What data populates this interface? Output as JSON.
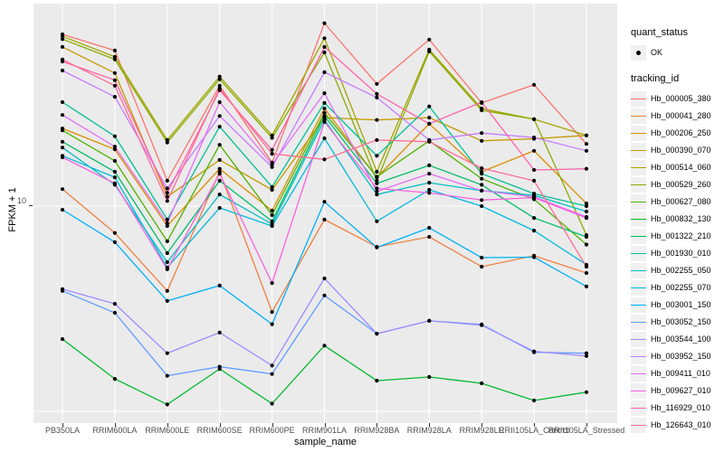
{
  "panel": {
    "background": "#EBEBEB",
    "gridline_color": "#FFFFFF"
  },
  "axes": {
    "y_title": "FPKM + 1",
    "x_title": "sample_name",
    "y_tick_labels": [
      "10"
    ]
  },
  "legend": {
    "quant_status_title": "quant_status",
    "quant_status_items": [
      "OK"
    ],
    "tracking_title": "tracking_id"
  },
  "chart_data": {
    "type": "line",
    "title": "",
    "xlabel": "sample_name",
    "ylabel": "FPKM + 1",
    "y_scale": "log10",
    "ylim": [
      0.9,
      92
    ],
    "y_ticks": [
      10
    ],
    "y_gridlines": [
      1,
      10
    ],
    "grid": true,
    "legend_position": "right",
    "point_marker": {
      "shape": "filled-circle",
      "color": "#000000",
      "label": "OK"
    },
    "categories": [
      "PB350LA",
      "RRIM600LA",
      "RRIM600LE",
      "RRIM600SE",
      "RRIM600PE",
      "RRIM901LA",
      "RRIM928BA",
      "RRIM928LA",
      "RRIM928LE",
      "RRII105LA_Control",
      "RRII105LA_Stressed"
    ],
    "series": [
      {
        "name": "Hb_000005_380",
        "color": "#F8766D",
        "values": [
          68.7,
          57.3,
          13.3,
          38.6,
          16.3,
          77.8,
          39.4,
          64.8,
          31.8,
          39.0,
          20.1
        ]
      },
      {
        "name": "Hb_000041_280",
        "color": "#EE8042",
        "values": [
          12.1,
          7.4,
          3.86,
          14.7,
          3.05,
          8.6,
          6.33,
          7.08,
          5.07,
          5.73,
          4.72
        ]
      },
      {
        "name": "Hb_000206_250",
        "color": "#DB8E00",
        "values": [
          23.9,
          18.9,
          8.0,
          15.2,
          9.51,
          29.9,
          13.8,
          25.2,
          14.7,
          18.6,
          10.3
        ]
      },
      {
        "name": "Hb_000390_070",
        "color": "#C49A00",
        "values": [
          59.7,
          44.5,
          11.1,
          16.8,
          12.0,
          27.0,
          26.3,
          27.0,
          20.8,
          21.3,
          22.1
        ]
      },
      {
        "name": "Hb_000514_060",
        "color": "#A3A500",
        "values": [
          67.2,
          53.4,
          21.0,
          42.8,
          22.1,
          65.8,
          14.7,
          57.9,
          29.9,
          26.5,
          22.1
        ]
      },
      {
        "name": "Hb_000529_260",
        "color": "#89AC00",
        "values": [
          65.1,
          51.9,
          20.4,
          41.5,
          21.5,
          56.1,
          13.3,
          56.7,
          29.3,
          26.5,
          7.23
        ]
      },
      {
        "name": "Hb_000627_080",
        "color": "#4FB300",
        "values": [
          23.4,
          16.6,
          6.74,
          19.9,
          9.04,
          28.5,
          13.9,
          20.8,
          13.6,
          10.8,
          6.5
        ]
      },
      {
        "name": "Hb_000832_130",
        "color": "#00B92E",
        "values": [
          2.25,
          1.44,
          1.08,
          1.61,
          1.09,
          2.09,
          1.41,
          1.47,
          1.37,
          1.13,
          1.24
        ]
      },
      {
        "name": "Hb_001322_210",
        "color": "#00BD68",
        "values": [
          20.6,
          14.7,
          5.9,
          13.3,
          8.43,
          27.5,
          12.9,
          15.8,
          12.7,
          8.76,
          7.08
        ]
      },
      {
        "name": "Hb_001930_010",
        "color": "#00C094",
        "values": [
          32.1,
          21.9,
          8.6,
          24.4,
          12.4,
          31.8,
          17.6,
          30.6,
          14.4,
          11.5,
          10.0
        ]
      },
      {
        "name": "Hb_002255_050",
        "color": "#00BFC2",
        "values": [
          19.3,
          12.7,
          5.33,
          11.4,
          8.17,
          26.3,
          11.4,
          13.0,
          11.9,
          11.3,
          9.41
        ]
      },
      {
        "name": "Hb_002255_070",
        "color": "#00BADE",
        "values": [
          17.6,
          13.8,
          5.02,
          9.8,
          8.0,
          21.4,
          8.43,
          12.0,
          10.0,
          7.6,
          5.18
        ]
      },
      {
        "name": "Hb_003001_150",
        "color": "#00B0F6",
        "values": [
          9.6,
          6.67,
          3.45,
          4.1,
          2.66,
          10.5,
          6.29,
          7.84,
          5.61,
          5.64,
          4.06
        ]
      },
      {
        "name": "Hb_003052_150",
        "color": "#619CFF",
        "values": [
          3.86,
          3.02,
          1.49,
          1.65,
          1.52,
          3.67,
          2.39,
          2.76,
          2.65,
          1.94,
          1.92
        ]
      },
      {
        "name": "Hb_003544_100",
        "color": "#9F8CFF",
        "values": [
          3.94,
          3.34,
          1.92,
          2.42,
          1.67,
          4.44,
          2.39,
          2.76,
          2.63,
          1.96,
          1.86
        ]
      },
      {
        "name": "Hb_003952_150",
        "color": "#C77CFF",
        "values": [
          45.8,
          34.1,
          12.2,
          27.5,
          15.5,
          44.9,
          33.8,
          21.0,
          22.7,
          21.6,
          18.6
        ]
      },
      {
        "name": "Hb_009411_010",
        "color": "#E36EF6",
        "values": [
          27.8,
          19.5,
          8.25,
          32.1,
          16.0,
          35.5,
          11.8,
          14.4,
          11.9,
          11.1,
          8.85
        ]
      },
      {
        "name": "Hb_009627_010",
        "color": "#F962DD",
        "values": [
          17.3,
          12.9,
          4.92,
          14.4,
          4.22,
          25.7,
          12.2,
          11.6,
          10.7,
          11.0,
          8.76
        ]
      },
      {
        "name": "Hb_116929_010",
        "color": "#FF62A9",
        "values": [
          50.7,
          41.1,
          11.6,
          36.7,
          18.8,
          59.7,
          35.2,
          25.2,
          32.1,
          15.0,
          15.2
        ]
      },
      {
        "name": "Hb_126643_010",
        "color": "#FF6C92",
        "values": [
          51.8,
          38.6,
          10.6,
          37.5,
          18.0,
          16.9,
          21.0,
          20.6,
          15.3,
          13.3,
          5.07
        ]
      }
    ]
  }
}
